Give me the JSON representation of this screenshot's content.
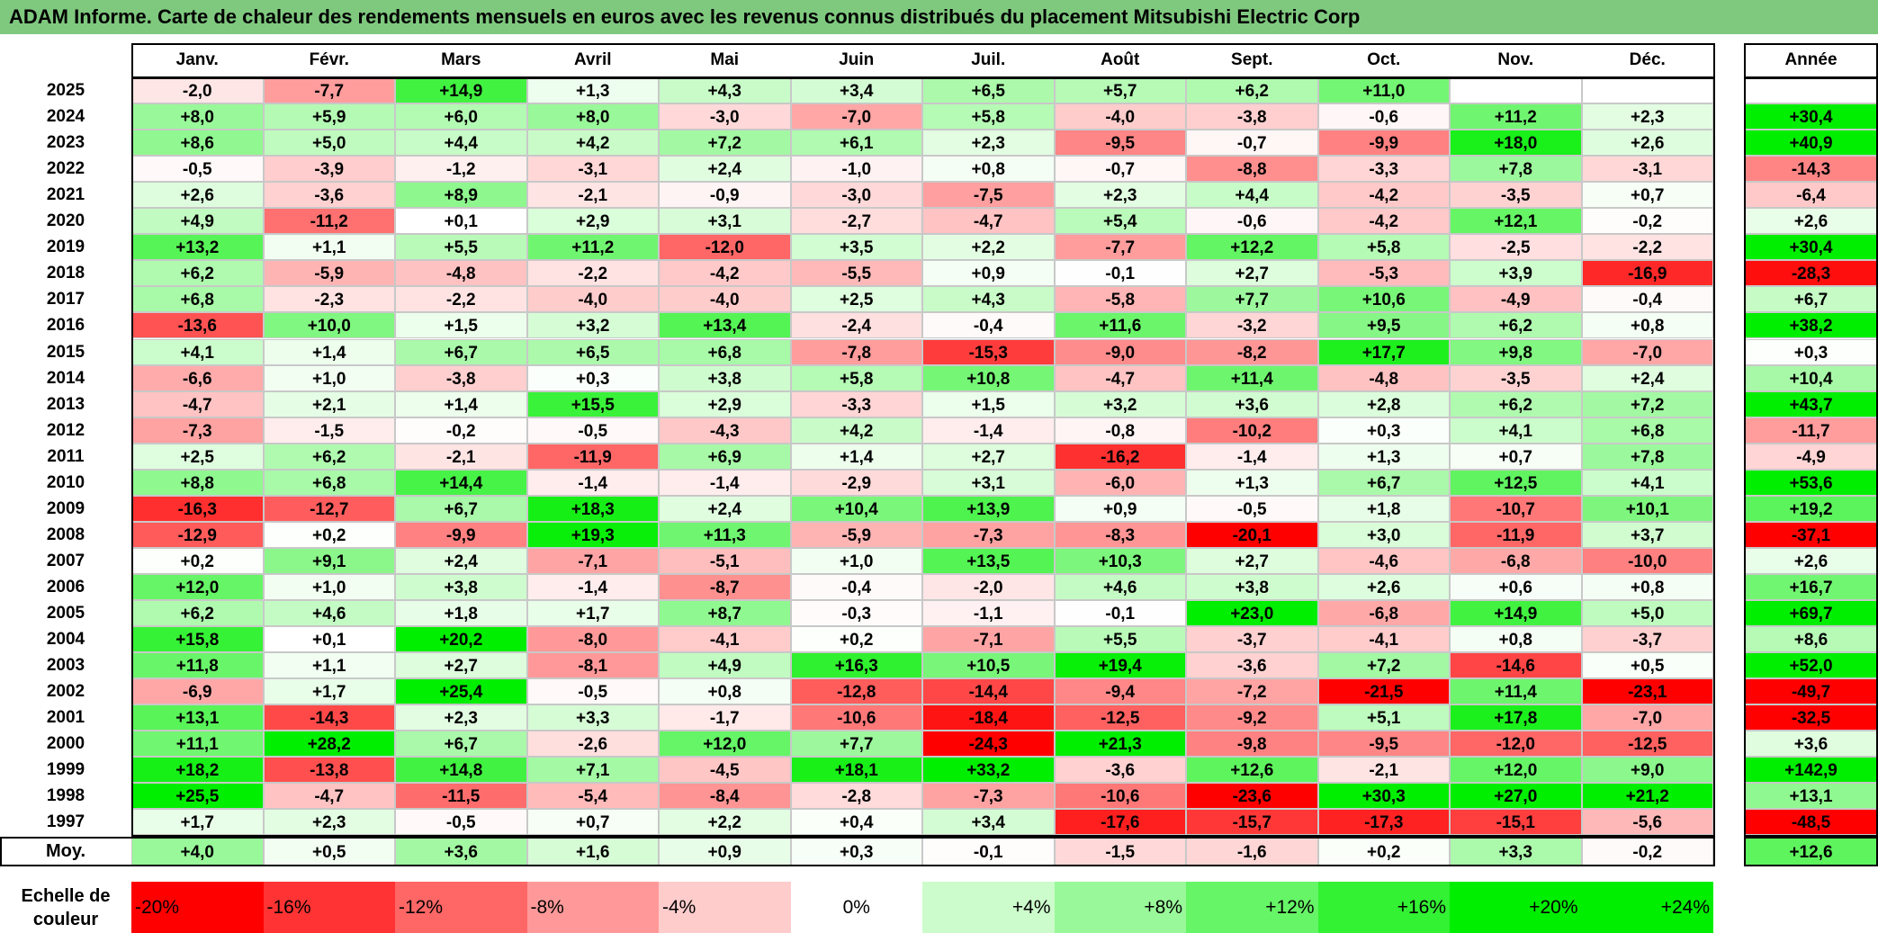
{
  "title": "ADAM Informe. Carte de chaleur des rendements mensuels en euros avec les revenus connus distribués du placement Mitsubishi Electric Corp",
  "chart_data": {
    "type": "heatmap",
    "title": "ADAM Informe. Carte de chaleur des rendements mensuels en euros avec les revenus connus distribués du placement Mitsubishi Electric Corp",
    "columns": [
      "Janv.",
      "Févr.",
      "Mars",
      "Avril",
      "Mai",
      "Juin",
      "Juil.",
      "Août",
      "Sept.",
      "Oct.",
      "Nov.",
      "Déc."
    ],
    "year_column_label": "Année",
    "rows": [
      {
        "year": "2025",
        "months": [
          "-2,0",
          "-7,7",
          "+14,9",
          "+1,3",
          "+4,3",
          "+3,4",
          "+6,5",
          "+5,7",
          "+6,2",
          "+11,0",
          "",
          ""
        ],
        "annual": ""
      },
      {
        "year": "2024",
        "months": [
          "+8,0",
          "+5,9",
          "+6,0",
          "+8,0",
          "-3,0",
          "-7,0",
          "+5,8",
          "-4,0",
          "-3,8",
          "-0,6",
          "+11,2",
          "+2,3"
        ],
        "annual": "+30,4"
      },
      {
        "year": "2023",
        "months": [
          "+8,6",
          "+5,0",
          "+4,4",
          "+4,2",
          "+7,2",
          "+6,1",
          "+2,3",
          "-9,5",
          "-0,7",
          "-9,9",
          "+18,0",
          "+2,6"
        ],
        "annual": "+40,9"
      },
      {
        "year": "2022",
        "months": [
          "-0,5",
          "-3,9",
          "-1,2",
          "-3,1",
          "+2,4",
          "-1,0",
          "+0,8",
          "-0,7",
          "-8,8",
          "-3,3",
          "+7,8",
          "-3,1"
        ],
        "annual": "-14,3"
      },
      {
        "year": "2021",
        "months": [
          "+2,6",
          "-3,6",
          "+8,9",
          "-2,1",
          "-0,9",
          "-3,0",
          "-7,5",
          "+2,3",
          "+4,4",
          "-4,2",
          "-3,5",
          "+0,7"
        ],
        "annual": "-6,4"
      },
      {
        "year": "2020",
        "months": [
          "+4,9",
          "-11,2",
          "+0,1",
          "+2,9",
          "+3,1",
          "-2,7",
          "-4,7",
          "+5,4",
          "-0,6",
          "-4,2",
          "+12,1",
          "-0,2"
        ],
        "annual": "+2,6"
      },
      {
        "year": "2019",
        "months": [
          "+13,2",
          "+1,1",
          "+5,5",
          "+11,2",
          "-12,0",
          "+3,5",
          "+2,2",
          "-7,7",
          "+12,2",
          "+5,8",
          "-2,5",
          "-2,2"
        ],
        "annual": "+30,4"
      },
      {
        "year": "2018",
        "months": [
          "+6,2",
          "-5,9",
          "-4,8",
          "-2,2",
          "-4,2",
          "-5,5",
          "+0,9",
          "-0,1",
          "+2,7",
          "-5,3",
          "+3,9",
          "-16,9"
        ],
        "annual": "-28,3"
      },
      {
        "year": "2017",
        "months": [
          "+6,8",
          "-2,3",
          "-2,2",
          "-4,0",
          "-4,0",
          "+2,5",
          "+4,3",
          "-5,8",
          "+7,7",
          "+10,6",
          "-4,9",
          "-0,4"
        ],
        "annual": "+6,7"
      },
      {
        "year": "2016",
        "months": [
          "-13,6",
          "+10,0",
          "+1,5",
          "+3,2",
          "+13,4",
          "-2,4",
          "-0,4",
          "+11,6",
          "-3,2",
          "+9,5",
          "+6,2",
          "+0,8"
        ],
        "annual": "+38,2"
      },
      {
        "year": "2015",
        "months": [
          "+4,1",
          "+1,4",
          "+6,7",
          "+6,5",
          "+6,8",
          "-7,8",
          "-15,3",
          "-9,0",
          "-8,2",
          "+17,7",
          "+9,8",
          "-7,0"
        ],
        "annual": "+0,3"
      },
      {
        "year": "2014",
        "months": [
          "-6,6",
          "+1,0",
          "-3,8",
          "+0,3",
          "+3,8",
          "+5,8",
          "+10,8",
          "-4,7",
          "+11,4",
          "-4,8",
          "-3,5",
          "+2,4"
        ],
        "annual": "+10,4"
      },
      {
        "year": "2013",
        "months": [
          "-4,7",
          "+2,1",
          "+1,4",
          "+15,5",
          "+2,9",
          "-3,3",
          "+1,5",
          "+3,2",
          "+3,6",
          "+2,8",
          "+6,2",
          "+7,2"
        ],
        "annual": "+43,7"
      },
      {
        "year": "2012",
        "months": [
          "-7,3",
          "-1,5",
          "-0,2",
          "-0,5",
          "-4,3",
          "+4,2",
          "-1,4",
          "-0,8",
          "-10,2",
          "+0,3",
          "+4,1",
          "+6,8"
        ],
        "annual": "-11,7"
      },
      {
        "year": "2011",
        "months": [
          "+2,5",
          "+6,2",
          "-2,1",
          "-11,9",
          "+6,9",
          "+1,4",
          "+2,7",
          "-16,2",
          "-1,4",
          "+1,3",
          "+0,7",
          "+7,8"
        ],
        "annual": "-4,9"
      },
      {
        "year": "2010",
        "months": [
          "+8,8",
          "+6,8",
          "+14,4",
          "-1,4",
          "-1,4",
          "-2,9",
          "+3,1",
          "-6,0",
          "+1,3",
          "+6,7",
          "+12,5",
          "+4,1"
        ],
        "annual": "+53,6"
      },
      {
        "year": "2009",
        "months": [
          "-16,3",
          "-12,7",
          "+6,7",
          "+18,3",
          "+2,4",
          "+10,4",
          "+13,9",
          "+0,9",
          "-0,5",
          "+1,8",
          "-10,7",
          "+10,1"
        ],
        "annual": "+19,2"
      },
      {
        "year": "2008",
        "months": [
          "-12,9",
          "+0,2",
          "-9,9",
          "+19,3",
          "+11,3",
          "-5,9",
          "-7,3",
          "-8,3",
          "-20,1",
          "+3,0",
          "-11,9",
          "+3,7"
        ],
        "annual": "-37,1"
      },
      {
        "year": "2007",
        "months": [
          "+0,2",
          "+9,1",
          "+2,4",
          "-7,1",
          "-5,1",
          "+1,0",
          "+13,5",
          "+10,3",
          "+2,7",
          "-4,6",
          "-6,8",
          "-10,0"
        ],
        "annual": "+2,6"
      },
      {
        "year": "2006",
        "months": [
          "+12,0",
          "+1,0",
          "+3,8",
          "-1,4",
          "-8,7",
          "-0,4",
          "-2,0",
          "+4,6",
          "+3,8",
          "+2,6",
          "+0,6",
          "+0,8"
        ],
        "annual": "+16,7"
      },
      {
        "year": "2005",
        "months": [
          "+6,2",
          "+4,6",
          "+1,8",
          "+1,7",
          "+8,7",
          "-0,3",
          "-1,1",
          "-0,1",
          "+23,0",
          "-6,8",
          "+14,9",
          "+5,0"
        ],
        "annual": "+69,7"
      },
      {
        "year": "2004",
        "months": [
          "+15,8",
          "+0,1",
          "+20,2",
          "-8,0",
          "-4,1",
          "+0,2",
          "-7,1",
          "+5,5",
          "-3,7",
          "-4,1",
          "+0,8",
          "-3,7"
        ],
        "annual": "+8,6"
      },
      {
        "year": "2003",
        "months": [
          "+11,8",
          "+1,1",
          "+2,7",
          "-8,1",
          "+4,9",
          "+16,3",
          "+10,5",
          "+19,4",
          "-3,6",
          "+7,2",
          "-14,6",
          "+0,5"
        ],
        "annual": "+52,0"
      },
      {
        "year": "2002",
        "months": [
          "-6,9",
          "+1,7",
          "+25,4",
          "-0,5",
          "+0,8",
          "-12,8",
          "-14,4",
          "-9,4",
          "-7,2",
          "-21,5",
          "+11,4",
          "-23,1"
        ],
        "annual": "-49,7"
      },
      {
        "year": "2001",
        "months": [
          "+13,1",
          "-14,3",
          "+2,3",
          "+3,3",
          "-1,7",
          "-10,6",
          "-18,4",
          "-12,5",
          "-9,2",
          "+5,1",
          "+17,8",
          "-7,0"
        ],
        "annual": "-32,5"
      },
      {
        "year": "2000",
        "months": [
          "+11,1",
          "+28,2",
          "+6,7",
          "-2,6",
          "+12,0",
          "+7,7",
          "-24,3",
          "+21,3",
          "-9,8",
          "-9,5",
          "-12,0",
          "-12,5"
        ],
        "annual": "+3,6"
      },
      {
        "year": "1999",
        "months": [
          "+18,2",
          "-13,8",
          "+14,8",
          "+7,1",
          "-4,5",
          "+18,1",
          "+33,2",
          "-3,6",
          "+12,6",
          "-2,1",
          "+12,0",
          "+9,0"
        ],
        "annual": "+142,9"
      },
      {
        "year": "1998",
        "months": [
          "+25,5",
          "-4,7",
          "-11,5",
          "-5,4",
          "-8,4",
          "-2,8",
          "-7,3",
          "-10,6",
          "-23,6",
          "+30,3",
          "+27,0",
          "+21,2"
        ],
        "annual": "+13,1"
      },
      {
        "year": "1997",
        "months": [
          "+1,7",
          "+2,3",
          "-0,5",
          "+0,7",
          "+2,2",
          "+0,4",
          "+3,4",
          "-17,6",
          "-15,7",
          "-17,3",
          "-15,1",
          "-5,6"
        ],
        "annual": "-48,5"
      }
    ],
    "average": {
      "label": "Moy.",
      "months": [
        "+4,0",
        "+0,5",
        "+3,6",
        "+1,6",
        "+0,9",
        "+0,3",
        "-0,1",
        "-1,5",
        "-1,6",
        "+0,2",
        "+3,3",
        "-0,2"
      ],
      "annual": "+12,6"
    },
    "color_scale": {
      "label_line1": "Echelle de",
      "label_line2": "couleur",
      "stops": [
        "-20%",
        "-16%",
        "-12%",
        "-8%",
        "-4%",
        "0%",
        "+4%",
        "+8%",
        "+12%",
        "+16%",
        "+20%",
        "+24%"
      ],
      "negative_color": "#ff0000",
      "neutral_color": "#ffffff",
      "positive_color": "#00ee00",
      "monthly_saturation_abs": 20,
      "annual_saturation_abs": 30
    }
  }
}
